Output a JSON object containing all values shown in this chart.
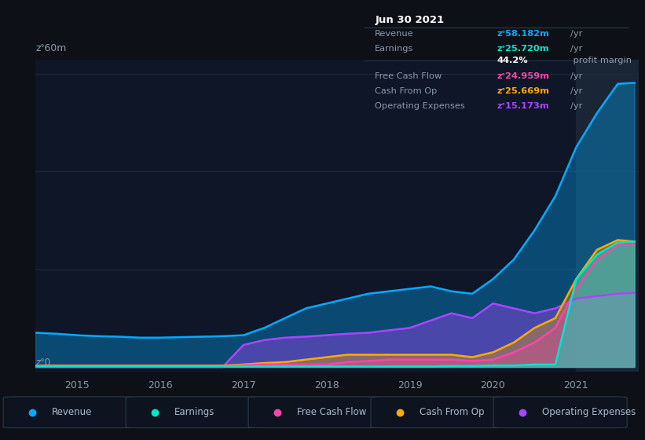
{
  "bg_color": "#0d1117",
  "plot_bg_color": "#0e1628",
  "grid_color": "#1e2a3a",
  "ylabel_top": "zᐤ60m",
  "ylabel_zero": "zᐤ0",
  "xlim": [
    2014.5,
    2021.75
  ],
  "ylim": [
    -1,
    63
  ],
  "yticks": [
    0,
    20,
    40,
    60
  ],
  "xticks": [
    2015,
    2016,
    2017,
    2018,
    2019,
    2020,
    2021
  ],
  "series": {
    "revenue": {
      "color": "#00aaff",
      "fill_color": "#00aaff",
      "fill_alpha": 0.35,
      "label": "Revenue",
      "x": [
        2014.5,
        2014.75,
        2015.0,
        2015.25,
        2015.5,
        2015.75,
        2016.0,
        2016.25,
        2016.5,
        2016.75,
        2017.0,
        2017.25,
        2017.5,
        2017.75,
        2018.0,
        2018.25,
        2018.5,
        2018.75,
        2019.0,
        2019.25,
        2019.5,
        2019.75,
        2020.0,
        2020.25,
        2020.5,
        2020.75,
        2021.0,
        2021.25,
        2021.5,
        2021.7
      ],
      "y": [
        7.0,
        6.8,
        6.5,
        6.3,
        6.2,
        6.0,
        6.0,
        6.1,
        6.2,
        6.3,
        6.5,
        8.0,
        10.0,
        12.0,
        13.0,
        14.0,
        15.0,
        15.5,
        16.0,
        16.5,
        15.5,
        15.0,
        18.0,
        22.0,
        28.0,
        35.0,
        45.0,
        52.0,
        58.0,
        58.2
      ]
    },
    "earnings": {
      "color": "#00e5cc",
      "fill_color": "#00e5cc",
      "fill_alpha": 0.45,
      "label": "Earnings",
      "x": [
        2014.5,
        2014.75,
        2015.0,
        2015.25,
        2015.5,
        2015.75,
        2016.0,
        2016.25,
        2016.5,
        2016.75,
        2017.0,
        2017.25,
        2017.5,
        2017.75,
        2018.0,
        2018.25,
        2018.5,
        2018.75,
        2019.0,
        2019.25,
        2019.5,
        2019.75,
        2020.0,
        2020.25,
        2020.5,
        2020.75,
        2021.0,
        2021.25,
        2021.5,
        2021.7
      ],
      "y": [
        0.1,
        0.1,
        0.1,
        0.1,
        0.1,
        0.1,
        0.1,
        0.1,
        0.1,
        0.1,
        0.1,
        0.1,
        0.1,
        0.1,
        0.1,
        0.1,
        0.1,
        0.1,
        0.1,
        0.1,
        0.2,
        0.2,
        0.3,
        0.3,
        0.5,
        0.5,
        18.0,
        23.0,
        25.5,
        25.7
      ]
    },
    "free_cash_flow": {
      "color": "#ff44aa",
      "fill_color": "#ff44aa",
      "fill_alpha": 0.3,
      "label": "Free Cash Flow",
      "x": [
        2014.5,
        2014.75,
        2015.0,
        2015.25,
        2015.5,
        2015.75,
        2016.0,
        2016.25,
        2016.5,
        2016.75,
        2017.0,
        2017.25,
        2017.5,
        2017.75,
        2018.0,
        2018.25,
        2018.5,
        2018.75,
        2019.0,
        2019.25,
        2019.5,
        2019.75,
        2020.0,
        2020.25,
        2020.5,
        2020.75,
        2021.0,
        2021.25,
        2021.5,
        2021.7
      ],
      "y": [
        0.2,
        0.2,
        0.2,
        0.2,
        0.2,
        0.2,
        0.2,
        0.2,
        0.2,
        0.2,
        0.3,
        0.5,
        0.5,
        0.5,
        0.5,
        1.0,
        1.2,
        1.5,
        1.5,
        1.5,
        1.5,
        1.2,
        1.5,
        3.0,
        5.0,
        8.0,
        16.0,
        22.0,
        25.0,
        25.0
      ]
    },
    "cash_from_op": {
      "color": "#ffaa00",
      "fill_color": "#ffaa00",
      "fill_alpha": 0.35,
      "label": "Cash From Op",
      "x": [
        2014.5,
        2014.75,
        2015.0,
        2015.25,
        2015.5,
        2015.75,
        2016.0,
        2016.25,
        2016.5,
        2016.75,
        2017.0,
        2017.25,
        2017.5,
        2017.75,
        2018.0,
        2018.25,
        2018.5,
        2018.75,
        2019.0,
        2019.25,
        2019.5,
        2019.75,
        2020.0,
        2020.25,
        2020.5,
        2020.75,
        2021.0,
        2021.25,
        2021.5,
        2021.7
      ],
      "y": [
        0.3,
        0.3,
        0.3,
        0.3,
        0.3,
        0.3,
        0.3,
        0.3,
        0.3,
        0.3,
        0.5,
        0.8,
        1.0,
        1.5,
        2.0,
        2.5,
        2.5,
        2.5,
        2.5,
        2.5,
        2.5,
        2.0,
        3.0,
        5.0,
        8.0,
        10.0,
        18.0,
        24.0,
        26.0,
        25.7
      ]
    },
    "operating_expenses": {
      "color": "#aa44ff",
      "fill_color": "#aa44ff",
      "fill_alpha": 0.4,
      "label": "Operating Expenses",
      "x": [
        2014.5,
        2014.75,
        2015.0,
        2015.25,
        2015.5,
        2015.75,
        2016.0,
        2016.25,
        2016.5,
        2016.75,
        2017.0,
        2017.25,
        2017.5,
        2017.75,
        2018.0,
        2018.25,
        2018.5,
        2018.75,
        2019.0,
        2019.25,
        2019.5,
        2019.75,
        2020.0,
        2020.25,
        2020.5,
        2020.75,
        2021.0,
        2021.25,
        2021.5,
        2021.7
      ],
      "y": [
        0.0,
        0.0,
        0.0,
        0.0,
        0.0,
        0.0,
        0.0,
        0.0,
        0.0,
        0.0,
        4.5,
        5.5,
        6.0,
        6.2,
        6.5,
        6.8,
        7.0,
        7.5,
        8.0,
        9.5,
        11.0,
        10.0,
        13.0,
        12.0,
        11.0,
        12.0,
        14.0,
        14.5,
        15.0,
        15.2
      ]
    }
  },
  "tooltip": {
    "title": "Jun 30 2021",
    "rows": [
      {
        "label": "Revenue",
        "value": "zᐤ58.182m",
        "unit": "/yr",
        "value_color": "#00aaff",
        "divider": false
      },
      {
        "label": "Earnings",
        "value": "zᐤ25.720m",
        "unit": "/yr",
        "value_color": "#00e5cc",
        "divider": false
      },
      {
        "label": "",
        "value": "44.2%",
        "unit": " profit margin",
        "value_color": "#ffffff",
        "divider": false
      },
      {
        "label": "Free Cash Flow",
        "value": "zᐤ24.959m",
        "unit": "/yr",
        "value_color": "#ff44aa",
        "divider": true
      },
      {
        "label": "Cash From Op",
        "value": "zᐤ25.669m",
        "unit": "/yr",
        "value_color": "#ffaa00",
        "divider": false
      },
      {
        "label": "Operating Expenses",
        "value": "zᐤ15.173m",
        "unit": "/yr",
        "value_color": "#aa44ff",
        "divider": false
      }
    ]
  },
  "legend": [
    {
      "label": "Revenue",
      "color": "#00aaff"
    },
    {
      "label": "Earnings",
      "color": "#00e5cc"
    },
    {
      "label": "Free Cash Flow",
      "color": "#ff44aa"
    },
    {
      "label": "Cash From Op",
      "color": "#ffaa00"
    },
    {
      "label": "Operating Expenses",
      "color": "#aa44ff"
    }
  ],
  "highlight_x": 2021.0,
  "highlight_color": "#1a2535"
}
